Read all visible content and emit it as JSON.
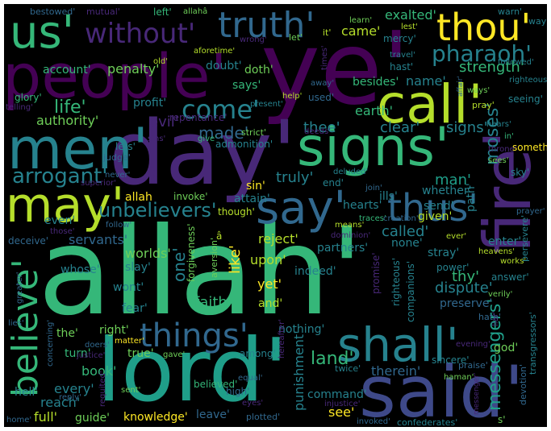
{
  "palette": {
    "dark_purple": "#440154",
    "purple": "#482878",
    "indigo": "#3e4989",
    "blue": "#31688e",
    "teal": "#26828e",
    "cyan_green": "#1f9e89",
    "green": "#35b779",
    "light_green": "#6ece58",
    "yellow_green": "#b5de2b",
    "yellow": "#fde725",
    "background": "#000000",
    "border": "#ffffff"
  },
  "words": {
    "allah_big": "allah'",
    "ye": "ye'",
    "people": "people'",
    "lord": "lord'",
    "said": "said'",
    "day": "day'",
    "signs_big": "signs'",
    "men": "men'",
    "call": "call'",
    "fire": "fire'",
    "may": "may'",
    "say": "say'",
    "thus": "thus'",
    "shall": "shall'",
    "things": "things'",
    "us": "us'",
    "truth": "truth'",
    "thou": "thou'",
    "without": "without'",
    "believe": "believe'",
    "come": "come'",
    "pharaoh": "pharaoh'",
    "arrogant": "arrogant'",
    "unbelievers": "unbelievers'",
    "life": "life'",
    "made": "made'",
    "moses": "moses'",
    "messengers": "messengers'",
    "land": "land'",
    "strength": "strength'",
    "exalted": "exalted'",
    "came": "came'",
    "clear": "clear'",
    "signs_small": "signs'",
    "earth": "earth'",
    "man": "man'",
    "authority": "authority'",
    "evil": "evil'",
    "name": "name'",
    "thee": "thee'",
    "truly": "truly'",
    "dispute": "dispute'",
    "faith": "faith'",
    "one": "one'",
    "like": "like'",
    "called": "called'",
    "reject": "reject'",
    "servants": "servants'",
    "worlds": "worlds'",
    "thy": "thy'",
    "upon": "upon'",
    "yet": "yet'",
    "nothing": "nothing'",
    "see": "see'",
    "book": "book'",
    "every": "every'",
    "reach": "reach'",
    "full": "full'",
    "guide": "guide'",
    "knowledge": "knowledge'",
    "leave": "leave'",
    "command": "command'",
    "therein": "therein'",
    "punishment": "punishment'",
    "penalty": "penalty'",
    "account": "account'",
    "doubt": "doubt'",
    "doth": "doth'",
    "says": "says'",
    "profit": "profit'",
    "glory": "glory'",
    "sin": "sin'",
    "attain": "attain'",
    "allah_small": "allah",
    "invoke": "invoke'",
    "hearts": "hearts'",
    "whether": "whether'",
    "path": "path'",
    "something": "something'",
    "send": "send'",
    "given": "given'",
    "even": "even'",
    "partners": "partners'",
    "none": "none'",
    "enter": "enter'",
    "stray": "stray'",
    "slay": "slay'",
    "wont": "wont'",
    "fear": "fear'",
    "whose": "whose'",
    "preserve": "preserve'",
    "right": "right'",
    "turn": "turn'",
    "true": "true'",
    "hell": "hell'",
    "the": "the'",
    "god": "god'",
    "end": "end'",
    "indeed": "indeed'",
    "and": "and'",
    "ills": "ills'",
    "lets": "lets'",
    "bestowed": "bestowed'",
    "mutual": "mutual'",
    "left": "left'",
    "allaha": "allahâ",
    "warn": "warn'",
    "way": "way'",
    "learn": "learn'",
    "lest": "lest'",
    "mercy": "mercy'",
    "followed": "followed'",
    "it": "it'",
    "let": "let'",
    "wrong": "wrong'",
    "aforetime": "aforetime'",
    "old": "old'",
    "travel": "travel'",
    "hast": "hast'",
    "besides": "besides'",
    "seeing": "seeing'",
    "righteous_small": "righteous'",
    "ways": "ways'",
    "pray": "pray'",
    "help": "help'",
    "used": "used'",
    "present": "present'",
    "telling": "telling'",
    "repentance": "repentance'",
    "admonition": "admonition'",
    "strict": "strict'",
    "deeds": "deeds'",
    "hears": "hears'",
    "in": "in'",
    "throne": "throne'",
    "sky": "sky'",
    "sins": "sins'",
    "give": "give'",
    "judge": "judge'",
    "superior": "superior'",
    "never": "never'",
    "soon": "soon'",
    "deluded": "deluded'",
    "sees": "sees'",
    "join": "join'",
    "traces": "traces'",
    "creation": "creation'",
    "though": "though'",
    "means": "means'",
    "dominion": "dominion'",
    "prayer": "prayer'",
    "persevere": "persevere'",
    "ever": "ever'",
    "heavens": "heavens'",
    "works": "works'",
    "follow": "follow'",
    "those": "those'",
    "deceive": "deceive'",
    "forgiveness": "forgiveness'",
    "aversion": "aversion'",
    "a": "â",
    "promise": "promise'",
    "righteous_v": "righteous'",
    "companions": "companions'",
    "power": "power'",
    "answer": "answer'",
    "verily": "verily'",
    "greater": "greater'",
    "lies": "lies'",
    "doers": "doers'",
    "matter": "matter'",
    "concerning": "concerning'",
    "justice": "justice'",
    "reply": "reply'",
    "home": "home'",
    "gave": "gave'",
    "among": "among'",
    "requited": "requited'",
    "sent": "sent'",
    "believed": "believed'",
    "high": "high'",
    "eyes": "eyes'",
    "equal": "equal'",
    "plotted": "plotted'",
    "twice": "twice'",
    "injustice": "injustice'",
    "invoked": "invoked'",
    "confederates": "confederates'",
    "sincere": "sincere'",
    "haman": "haman'",
    "evening": "evening'",
    "praise": "praise'",
    "hath": "hath'",
    "liar": "liar'",
    "messenger": "messenger'",
    "devotion": "devotion'",
    "transgressors": "transgressors'",
    "hereafter": "hereafter'",
    "affair": "affair'",
    "s": "s'",
    "times": "times'",
    "away": "away'"
  }
}
